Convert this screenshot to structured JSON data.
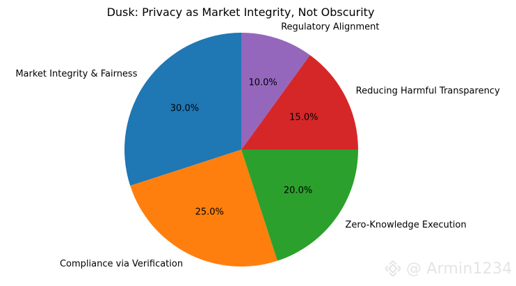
{
  "chart_data": {
    "type": "pie",
    "title": "Dusk: Privacy as Market Integrity, Not Obscurity",
    "start_angle_deg": 90,
    "direction": "counterclockwise",
    "slices": [
      {
        "label": "Market Integrity & Fairness",
        "value": 30.0,
        "pct_label": "30.0%",
        "color": "#1f77b4"
      },
      {
        "label": "Compliance via Verification",
        "value": 25.0,
        "pct_label": "25.0%",
        "color": "#ff7f0e"
      },
      {
        "label": "Zero-Knowledge Execution",
        "value": 20.0,
        "pct_label": "20.0%",
        "color": "#2ca02c"
      },
      {
        "label": "Reducing Harmful Transparency",
        "value": 15.0,
        "pct_label": "15.0%",
        "color": "#d62728"
      },
      {
        "label": "Regulatory Alignment",
        "value": 10.0,
        "pct_label": "10.0%",
        "color": "#9467bd"
      }
    ]
  },
  "watermark": {
    "text": "@ Armin1234",
    "icon": "binance-logo-icon"
  }
}
